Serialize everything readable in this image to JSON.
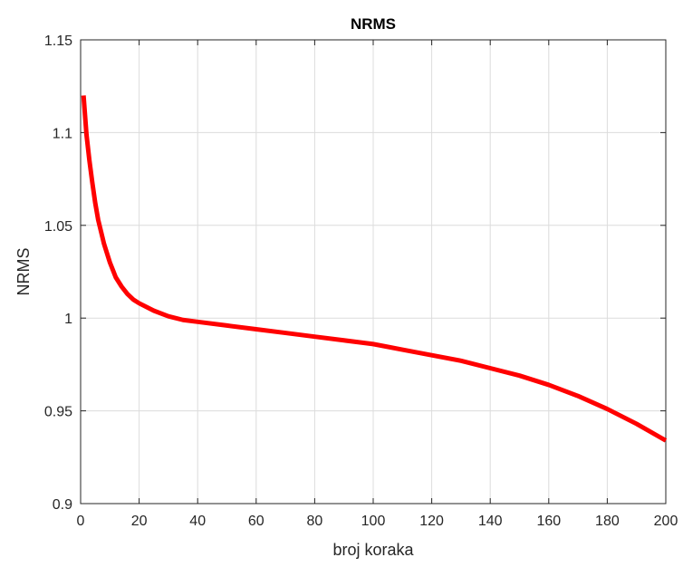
{
  "chart_data": {
    "type": "line",
    "title": "NRMS",
    "xlabel": "broj koraka",
    "ylabel": "NRMS",
    "xlim": [
      0,
      200
    ],
    "ylim": [
      0.9,
      1.15
    ],
    "grid": true,
    "x_ticks": [
      "0",
      "20",
      "40",
      "60",
      "80",
      "100",
      "120",
      "140",
      "160",
      "180",
      "200"
    ],
    "y_ticks": [
      "0.9",
      "0.95",
      "1",
      "1.05",
      "1.1",
      "1.15"
    ],
    "series": [
      {
        "color": "#ff0000",
        "x": [
          1,
          2,
          3,
          4,
          5,
          6,
          8,
          10,
          12,
          14,
          16,
          18,
          20,
          25,
          30,
          35,
          40,
          50,
          60,
          70,
          80,
          90,
          100,
          110,
          120,
          130,
          140,
          150,
          160,
          170,
          180,
          190,
          200
        ],
        "y": [
          1.12,
          1.099,
          1.085,
          1.073,
          1.062,
          1.053,
          1.04,
          1.03,
          1.022,
          1.017,
          1.013,
          1.01,
          1.008,
          1.004,
          1.001,
          0.999,
          0.998,
          0.996,
          0.994,
          0.992,
          0.99,
          0.988,
          0.986,
          0.983,
          0.98,
          0.977,
          0.973,
          0.969,
          0.964,
          0.958,
          0.951,
          0.943,
          0.934
        ]
      }
    ]
  }
}
